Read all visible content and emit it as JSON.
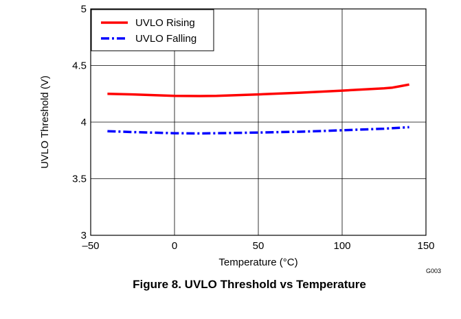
{
  "chart_data": {
    "type": "line",
    "caption": "Figure 8. UVLO Threshold vs Temperature",
    "figure_id": "G003",
    "xlabel": "Temperature (°C)",
    "ylabel": "UVLO Threshold (V)",
    "xlim": [
      -50,
      150
    ],
    "ylim": [
      3,
      5
    ],
    "xticks": [
      -50,
      0,
      50,
      100,
      150
    ],
    "xtick_labels": [
      "–50",
      "0",
      "50",
      "100",
      "150"
    ],
    "yticks": [
      3,
      3.5,
      4,
      4.5,
      5
    ],
    "ytick_labels": [
      "3",
      "3.5",
      "4",
      "4.5",
      "5"
    ],
    "grid": true,
    "legend_position": "top-left",
    "series": [
      {
        "name": "UVLO Rising",
        "color": "#ff0000",
        "style": "solid",
        "x": [
          -40,
          -25,
          0,
          15,
          25,
          50,
          75,
          100,
          125,
          130,
          135,
          140
        ],
        "y": [
          4.25,
          4.245,
          4.232,
          4.23,
          4.232,
          4.245,
          4.26,
          4.278,
          4.298,
          4.305,
          4.318,
          4.332
        ]
      },
      {
        "name": "UVLO Falling",
        "color": "#0000ff",
        "style": "dashdot",
        "x": [
          -40,
          -25,
          0,
          15,
          25,
          50,
          75,
          100,
          125,
          140
        ],
        "y": [
          3.92,
          3.912,
          3.902,
          3.9,
          3.902,
          3.908,
          3.915,
          3.928,
          3.942,
          3.955
        ]
      }
    ]
  }
}
